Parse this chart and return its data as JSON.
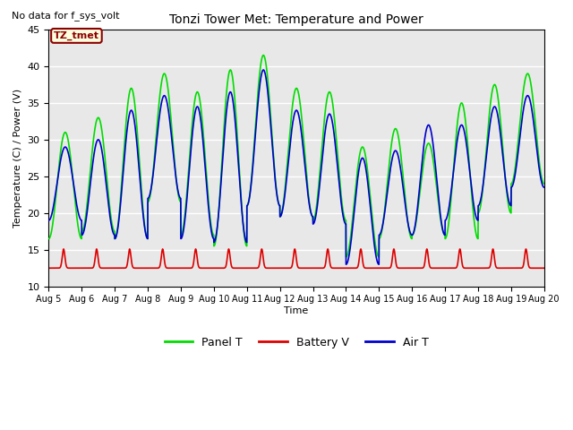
{
  "title": "Tonzi Tower Met: Temperature and Power",
  "top_left_text": "No data for f_sys_volt",
  "annotation_text": "TZ_tmet",
  "ylabel": "Temperature (C) / Power (V)",
  "xlabel": "Time",
  "ylim": [
    10,
    45
  ],
  "x_tick_labels": [
    "Aug 5",
    "Aug 6",
    "Aug 7",
    "Aug 8",
    "Aug 9",
    "Aug 10",
    "Aug 11",
    "Aug 12",
    "Aug 13",
    "Aug 14",
    "Aug 15",
    "Aug 16",
    "Aug 17",
    "Aug 18",
    "Aug 19",
    "Aug 20"
  ],
  "panel_color": "#00dd00",
  "battery_color": "#dd0000",
  "air_color": "#0000cc",
  "plot_bg_color": "#e8e8e8",
  "legend_labels": [
    "Panel T",
    "Battery V",
    "Air T"
  ],
  "grid_color": "white",
  "panel_peaks": [
    31.0,
    33.0,
    37.0,
    39.0,
    36.5,
    39.5,
    41.5,
    37.0,
    36.5,
    29.0,
    31.5,
    29.5,
    35.0,
    37.5,
    39.0
  ],
  "panel_troughs": [
    16.5,
    17.5,
    16.5,
    21.5,
    17.0,
    15.5,
    21.0,
    19.5,
    19.0,
    14.0,
    16.5,
    17.0,
    16.5,
    20.0,
    24.0
  ],
  "air_peaks": [
    29.0,
    30.0,
    34.0,
    36.0,
    34.5,
    36.5,
    39.5,
    34.0,
    33.5,
    27.5,
    28.5,
    32.0,
    32.0,
    34.5,
    36.0
  ],
  "air_troughs": [
    19.0,
    17.0,
    16.5,
    22.0,
    16.5,
    16.0,
    21.0,
    19.5,
    18.5,
    13.0,
    17.0,
    17.0,
    19.0,
    21.0,
    23.5
  ],
  "battery_base": 12.5,
  "battery_peak": 15.1,
  "num_days": 15,
  "figwidth": 6.4,
  "figheight": 4.8,
  "dpi": 100
}
